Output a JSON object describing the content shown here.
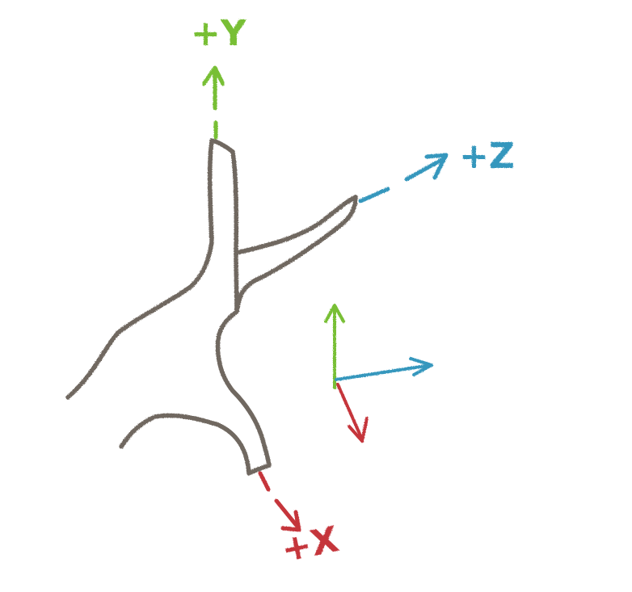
{
  "diagram": {
    "labels": {
      "y_axis": "+Y",
      "z_axis": "+Z",
      "x_axis": "+X"
    },
    "colors": {
      "stroke": "#6f6760",
      "x_axis": "#c5343a",
      "y_axis": "#78bf34",
      "z_axis": "#3697bd"
    }
  }
}
